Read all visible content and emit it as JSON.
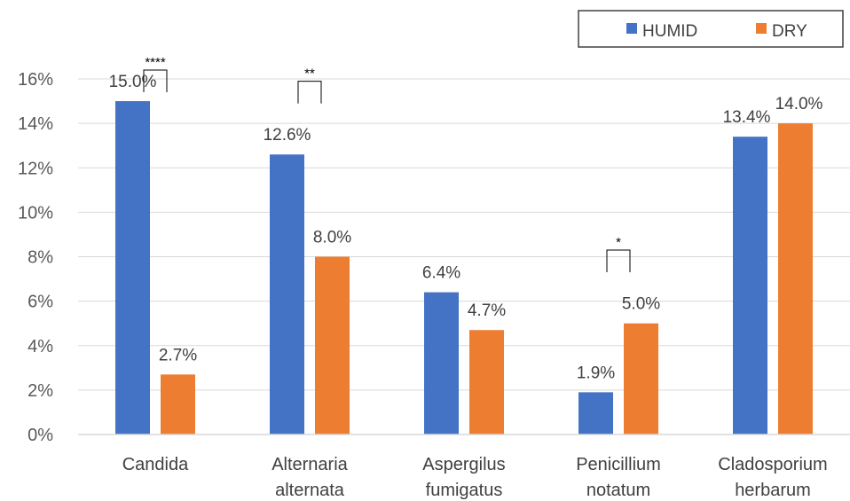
{
  "chart_data": {
    "type": "bar",
    "categories": [
      [
        "Candida"
      ],
      [
        "Alternaria",
        "alternata"
      ],
      [
        "Aspergilus",
        "fumigatus"
      ],
      [
        "Penicillium",
        "notatum"
      ],
      [
        "Cladosporium",
        "herbarum"
      ]
    ],
    "series": [
      {
        "name": "HUMID",
        "values": [
          15.0,
          12.6,
          6.4,
          1.9,
          13.4
        ],
        "labels": [
          "15.0%",
          "12.6%",
          "6.4%",
          "1.9%",
          "13.4%"
        ]
      },
      {
        "name": "DRY",
        "values": [
          2.7,
          8.0,
          4.7,
          5.0,
          14.0
        ],
        "labels": [
          "2.7%",
          "8.0%",
          "4.7%",
          "5.0%",
          "14.0%"
        ]
      }
    ],
    "ylim": [
      0,
      16
    ],
    "yticks": [
      0,
      2,
      4,
      6,
      8,
      10,
      12,
      14,
      16
    ],
    "ytick_labels": [
      "0%",
      "2%",
      "4%",
      "6%",
      "8%",
      "10%",
      "12%",
      "14%",
      "16%"
    ],
    "significance": [
      {
        "category_index": 0,
        "text": "****"
      },
      {
        "category_index": 1,
        "text": "**"
      },
      {
        "category_index": 3,
        "text": "*"
      }
    ],
    "legend_position": "top-right",
    "gridlines": true,
    "colors": {
      "HUMID": "#4472C4",
      "DRY": "#ED7D31",
      "grid": "#D9D9D9"
    }
  }
}
